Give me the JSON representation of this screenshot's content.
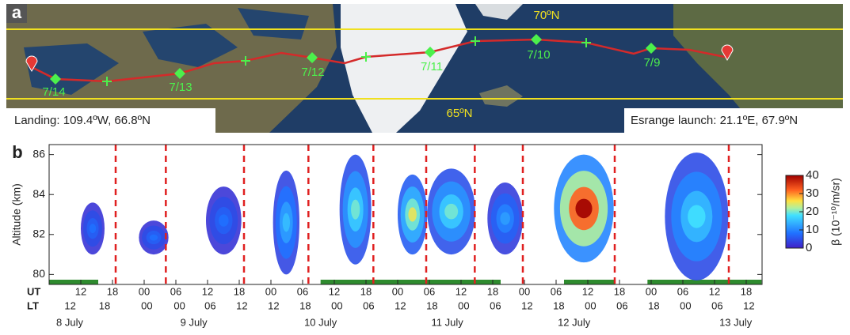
{
  "map": {
    "label": "a",
    "lat_north": "70ºN",
    "lat_south": "65ºN",
    "landing": "Landing: 109.4ºW, 66.8ºN",
    "launch": "Esrange launch: 21.1ºE, 67.9ºN",
    "markers": [
      "7/14",
      "7/13",
      "7/12",
      "7/11",
      "7/10",
      "7/9"
    ]
  },
  "chart_data": {
    "type": "heatmap",
    "panel_label": "b",
    "y_label": "Altitude (km)",
    "ylim": [
      79.5,
      86.5
    ],
    "yticks": [
      80,
      82,
      84,
      86
    ],
    "xlim": [
      6,
      141
    ],
    "x_row_labels": [
      "UT",
      "LT"
    ],
    "xticks": [
      {
        "value": 12,
        "label": "12"
      },
      {
        "value": 18,
        "label": "18"
      },
      {
        "value": 24,
        "label": "00"
      },
      {
        "value": 30,
        "label": "06"
      },
      {
        "value": 36,
        "label": "12"
      },
      {
        "value": 42,
        "label": "18"
      },
      {
        "value": 48,
        "label": "00"
      },
      {
        "value": 54,
        "label": "06"
      },
      {
        "value": 60,
        "label": "12"
      },
      {
        "value": 66,
        "label": "18"
      },
      {
        "value": 72,
        "label": "00"
      },
      {
        "value": 78,
        "label": "06"
      },
      {
        "value": 84,
        "label": "12"
      },
      {
        "value": 90,
        "label": "18"
      },
      {
        "value": 96,
        "label": "00"
      },
      {
        "value": 102,
        "label": "06"
      },
      {
        "value": 108,
        "label": "12"
      },
      {
        "value": 114,
        "label": "18"
      },
      {
        "value": 120,
        "label": "00"
      },
      {
        "value": 126,
        "label": "06"
      },
      {
        "value": 132,
        "label": "12"
      },
      {
        "value": 138,
        "label": "18"
      }
    ],
    "lt_ticks": [
      {
        "value": 10,
        "label": "12"
      },
      {
        "value": 16.5,
        "label": "18"
      },
      {
        "value": 24.5,
        "label": "00"
      },
      {
        "value": 30.7,
        "label": "00"
      },
      {
        "value": 36.5,
        "label": "06"
      },
      {
        "value": 42.5,
        "label": "12"
      },
      {
        "value": 48.5,
        "label": "12"
      },
      {
        "value": 54.5,
        "label": "18"
      },
      {
        "value": 60.5,
        "label": "00"
      },
      {
        "value": 66.5,
        "label": "06"
      },
      {
        "value": 72.5,
        "label": "12"
      },
      {
        "value": 78.5,
        "label": "18"
      },
      {
        "value": 84.5,
        "label": "00"
      },
      {
        "value": 90.5,
        "label": "06"
      },
      {
        "value": 96.5,
        "label": "12"
      },
      {
        "value": 102.5,
        "label": "18"
      },
      {
        "value": 108.5,
        "label": "00"
      },
      {
        "value": 114.5,
        "label": "06"
      },
      {
        "value": 120.5,
        "label": "18"
      },
      {
        "value": 126.5,
        "label": "00"
      },
      {
        "value": 132.5,
        "label": "06"
      },
      {
        "value": 138.5,
        "label": "12"
      }
    ],
    "day_labels": [
      {
        "value": 9.9,
        "label": "8 July"
      },
      {
        "value": 33.4,
        "label": "9 July"
      },
      {
        "value": 57.4,
        "label": "10 July"
      },
      {
        "value": 81.4,
        "label": "11 July"
      },
      {
        "value": 105.4,
        "label": "12 July"
      },
      {
        "value": 136,
        "label": "13 July"
      }
    ],
    "flight_breaks": [
      18.6,
      28.1,
      42.9,
      55.1,
      67.4,
      77.4,
      86.6,
      95.7,
      113.1,
      134.7
    ],
    "daylight": [
      [
        6,
        15.3
      ],
      [
        57.4,
        91.5
      ],
      [
        103.5,
        113.2
      ],
      [
        119.3,
        140.9
      ]
    ],
    "echoes": [
      {
        "t": [
          12,
          16.5
        ],
        "z": [
          81,
          83.6
        ],
        "beta": 8
      },
      {
        "t": [
          23,
          28.6
        ],
        "z": [
          81,
          82.7
        ],
        "beta": 8
      },
      {
        "t": [
          35.7,
          42.4
        ],
        "z": [
          81,
          84.4
        ],
        "beta": 8
      },
      {
        "t": [
          48.4,
          53.4
        ],
        "z": [
          80,
          85.2
        ],
        "beta": 15
      },
      {
        "t": [
          61,
          67
        ],
        "z": [
          80.5,
          86
        ],
        "beta": 20
      },
      {
        "t": [
          72,
          77.6
        ],
        "z": [
          81,
          85
        ],
        "beta": 25
      },
      {
        "t": [
          77.6,
          86.7
        ],
        "z": [
          81,
          85.3
        ],
        "beta": 20
      },
      {
        "t": [
          89,
          95.7
        ],
        "z": [
          81,
          84.6
        ],
        "beta": 12
      },
      {
        "t": [
          101.6,
          112.9
        ],
        "z": [
          80.6,
          86
        ],
        "beta": 40
      },
      {
        "t": [
          122.6,
          134.6
        ],
        "z": [
          79.7,
          86.1
        ],
        "beta": 18
      }
    ],
    "colorbar": {
      "label": "β (10⁻¹⁰/m/sr)",
      "lim": [
        0,
        40
      ],
      "ticks": [
        0,
        10,
        20,
        30,
        40
      ]
    }
  }
}
